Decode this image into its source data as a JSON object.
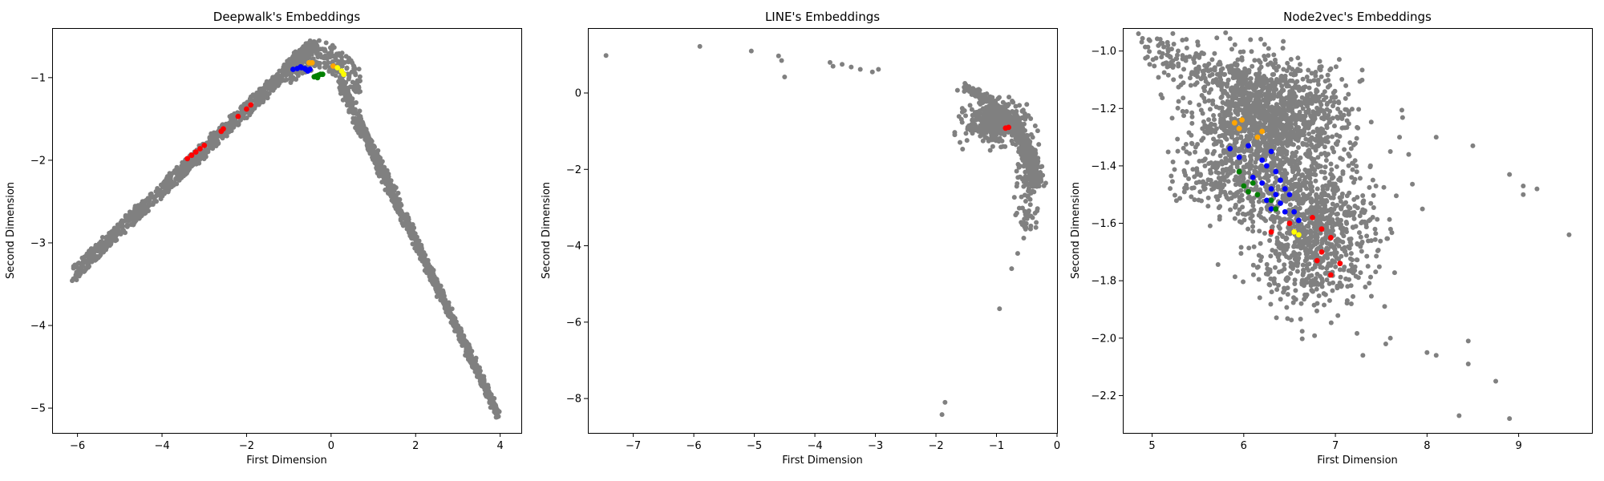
{
  "chart_data": [
    {
      "type": "scatter",
      "title": "Deepwalk's Embeddings",
      "xlabel": "First Dimension",
      "ylabel": "Second Dimension",
      "xlim": [
        -6.6,
        4.5
      ],
      "ylim": [
        -5.3,
        -0.4
      ],
      "xticks": [
        -6,
        -4,
        -2,
        0,
        2,
        4
      ],
      "xtick_labels": [
        "−6",
        "−4",
        "−2",
        "0",
        "2",
        "4"
      ],
      "yticks": [
        -5,
        -4,
        -3,
        -2,
        -1
      ],
      "ytick_labels": [
        "−5",
        "−4",
        "−3",
        "−2",
        "−1"
      ],
      "grid": false,
      "series": [
        {
          "color": "#808080",
          "shape": {
            "kind": "deepwalk-band"
          }
        },
        {
          "color": "#ff0000",
          "points": [
            [
              -3.4,
              -1.98
            ],
            [
              -3.3,
              -1.94
            ],
            [
              -3.2,
              -1.9
            ],
            [
              -3.1,
              -1.86
            ],
            [
              -3.0,
              -1.82
            ],
            [
              -2.6,
              -1.65
            ],
            [
              -2.55,
              -1.62
            ],
            [
              -2.2,
              -1.47
            ],
            [
              -2.0,
              -1.38
            ],
            [
              -1.9,
              -1.33
            ]
          ]
        },
        {
          "color": "#0000ff",
          "points": [
            [
              -0.9,
              -0.9
            ],
            [
              -0.8,
              -0.89
            ],
            [
              -0.7,
              -0.88
            ],
            [
              -0.62,
              -0.89
            ],
            [
              -0.55,
              -0.92
            ],
            [
              -0.6,
              -0.9
            ],
            [
              -0.72,
              -0.87
            ],
            [
              -0.5,
              -0.9
            ]
          ]
        },
        {
          "color": "#008000",
          "points": [
            [
              -0.4,
              -0.99
            ],
            [
              -0.35,
              -0.98
            ],
            [
              -0.3,
              -0.97
            ],
            [
              -0.25,
              -0.96
            ],
            [
              -0.2,
              -0.96
            ],
            [
              -0.32,
              -1.0
            ]
          ]
        },
        {
          "color": "#ffa500",
          "points": [
            [
              -0.52,
              -0.82
            ],
            [
              -0.45,
              -0.82
            ],
            [
              0.05,
              -0.86
            ]
          ]
        },
        {
          "color": "#ffff00",
          "points": [
            [
              0.15,
              -0.88
            ],
            [
              0.25,
              -0.92
            ],
            [
              0.3,
              -0.96
            ]
          ]
        }
      ]
    },
    {
      "type": "scatter",
      "title": "LINE's Embeddings",
      "xlabel": "First Dimension",
      "ylabel": "Second Dimension",
      "xlim": [
        -7.75,
        0.0
      ],
      "ylim": [
        -8.9,
        1.7
      ],
      "xticks": [
        -7,
        -6,
        -5,
        -4,
        -3,
        -2,
        -1,
        0
      ],
      "xtick_labels": [
        "−7",
        "−6",
        "−5",
        "−4",
        "−3",
        "−2",
        "−1",
        "0"
      ],
      "yticks": [
        -8,
        -6,
        -4,
        -2,
        0
      ],
      "ytick_labels": [
        "−8",
        "−6",
        "−4",
        "−2",
        "0"
      ],
      "grid": false,
      "series": [
        {
          "color": "#808080",
          "shape": {
            "kind": "line-arc"
          },
          "points": [
            [
              -7.45,
              0.98
            ],
            [
              -5.9,
              1.22
            ],
            [
              -5.05,
              1.1
            ],
            [
              -4.6,
              0.97
            ],
            [
              -4.55,
              0.85
            ],
            [
              -4.5,
              0.42
            ],
            [
              -3.75,
              0.8
            ],
            [
              -3.7,
              0.7
            ],
            [
              -3.55,
              0.75
            ],
            [
              -3.4,
              0.68
            ],
            [
              -3.25,
              0.62
            ],
            [
              -3.05,
              0.55
            ],
            [
              -2.95,
              0.62
            ],
            [
              -1.85,
              -8.1
            ],
            [
              -1.9,
              -8.42
            ],
            [
              -0.95,
              -5.65
            ],
            [
              -0.75,
              -4.6
            ],
            [
              -0.65,
              -4.2
            ],
            [
              -0.55,
              -3.8
            ],
            [
              -0.8,
              -0.3
            ],
            [
              -0.5,
              -0.3
            ]
          ]
        },
        {
          "color": "#ff0000",
          "points": [
            [
              -0.85,
              -0.92
            ],
            [
              -0.8,
              -0.9
            ]
          ]
        }
      ]
    },
    {
      "type": "scatter",
      "title": "Node2vec's Embeddings",
      "xlabel": "First Dimension",
      "ylabel": "Second Dimension",
      "xlim": [
        4.68,
        9.8
      ],
      "ylim": [
        -2.33,
        -0.92
      ],
      "xticks": [
        5,
        6,
        7,
        8,
        9
      ],
      "xtick_labels": [
        "5",
        "6",
        "7",
        "8",
        "9"
      ],
      "yticks": [
        -2.2,
        -2.0,
        -1.8,
        -1.6,
        -1.4,
        -1.2,
        -1.0
      ],
      "ytick_labels": [
        "−2.2",
        "−2.0",
        "−1.8",
        "−1.6",
        "−1.4",
        "−1.2",
        "−1.0"
      ],
      "grid": false,
      "series": [
        {
          "color": "#808080",
          "shape": {
            "kind": "node2vec-cloud"
          },
          "points": [
            [
              7.6,
              -1.35
            ],
            [
              7.7,
              -1.3
            ],
            [
              7.8,
              -1.36
            ],
            [
              8.1,
              -1.3
            ],
            [
              8.5,
              -1.33
            ],
            [
              8.9,
              -1.43
            ],
            [
              9.05,
              -1.47
            ],
            [
              9.2,
              -1.48
            ],
            [
              9.05,
              -1.5
            ],
            [
              9.55,
              -1.64
            ],
            [
              7.95,
              -1.55
            ],
            [
              7.6,
              -2.0
            ],
            [
              7.55,
              -2.02
            ],
            [
              7.3,
              -2.06
            ],
            [
              8.0,
              -2.05
            ],
            [
              8.1,
              -2.06
            ],
            [
              8.45,
              -2.01
            ],
            [
              8.45,
              -2.09
            ],
            [
              8.75,
              -2.15
            ],
            [
              8.35,
              -2.27
            ],
            [
              8.9,
              -2.28
            ]
          ]
        },
        {
          "color": "#ff0000",
          "points": [
            [
              6.5,
              -1.6
            ],
            [
              6.55,
              -1.63
            ],
            [
              6.75,
              -1.58
            ],
            [
              6.85,
              -1.62
            ],
            [
              6.95,
              -1.65
            ],
            [
              6.85,
              -1.7
            ],
            [
              6.8,
              -1.73
            ],
            [
              6.95,
              -1.78
            ],
            [
              7.05,
              -1.74
            ],
            [
              6.3,
              -1.63
            ]
          ]
        },
        {
          "color": "#0000ff",
          "points": [
            [
              5.85,
              -1.34
            ],
            [
              5.95,
              -1.37
            ],
            [
              6.05,
              -1.33
            ],
            [
              6.1,
              -1.44
            ],
            [
              6.2,
              -1.46
            ],
            [
              6.25,
              -1.4
            ],
            [
              6.3,
              -1.48
            ],
            [
              6.35,
              -1.5
            ],
            [
              6.4,
              -1.53
            ],
            [
              6.25,
              -1.52
            ],
            [
              6.3,
              -1.55
            ],
            [
              6.4,
              -1.45
            ],
            [
              6.45,
              -1.48
            ],
            [
              6.2,
              -1.38
            ],
            [
              6.35,
              -1.42
            ],
            [
              6.5,
              -1.5
            ],
            [
              6.55,
              -1.56
            ],
            [
              6.6,
              -1.59
            ],
            [
              6.45,
              -1.56
            ],
            [
              6.3,
              -1.35
            ]
          ]
        },
        {
          "color": "#008000",
          "points": [
            [
              5.95,
              -1.42
            ],
            [
              6.0,
              -1.47
            ],
            [
              6.05,
              -1.49
            ],
            [
              6.1,
              -1.46
            ],
            [
              6.15,
              -1.5
            ],
            [
              6.3,
              -1.52
            ],
            [
              6.35,
              -1.55
            ]
          ]
        },
        {
          "color": "#ffa500",
          "points": [
            [
              5.9,
              -1.25
            ],
            [
              5.95,
              -1.27
            ],
            [
              5.98,
              -1.24
            ],
            [
              6.15,
              -1.3
            ],
            [
              6.2,
              -1.28
            ]
          ]
        },
        {
          "color": "#ffff00",
          "points": [
            [
              6.55,
              -1.63
            ],
            [
              6.6,
              -1.64
            ]
          ]
        }
      ]
    }
  ]
}
